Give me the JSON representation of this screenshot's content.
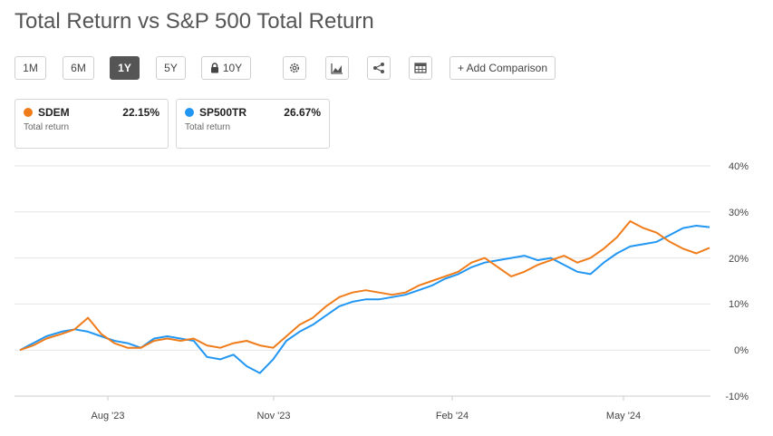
{
  "title": "Total Return vs S&P 500 Total Return",
  "ranges": [
    "1M",
    "6M",
    "1Y",
    "5Y",
    "10Y"
  ],
  "active_range": "1Y",
  "toolbar": {
    "add_comparison": "+ Add Comparison"
  },
  "icons": [
    "gear-icon",
    "mountain-chart-icon",
    "share-icon",
    "table-icon",
    "lock-icon"
  ],
  "legend": [
    {
      "symbol": "SDEM",
      "value": "22.15%",
      "sub": "Total return",
      "color": "#f07c19"
    },
    {
      "symbol": "SP500TR",
      "value": "26.67%",
      "sub": "Total return",
      "color": "#2196f3"
    }
  ],
  "chart_data": {
    "type": "line",
    "y_ticks": [
      "40%",
      "30%",
      "20%",
      "10%",
      "0%",
      "-10%"
    ],
    "x_ticks": [
      "Aug '23",
      "Nov '23",
      "Feb '24",
      "May '24"
    ],
    "ylim": [
      -10,
      40
    ],
    "grid": true,
    "series": [
      {
        "name": "SDEM",
        "color": "#f07c19",
        "x": [
          "2023-06-14",
          "2023-06-21",
          "2023-06-28",
          "2023-07-06",
          "2023-07-13",
          "2023-07-20",
          "2023-07-27",
          "2023-08-03",
          "2023-08-10",
          "2023-08-17",
          "2023-08-24",
          "2023-08-31",
          "2023-09-07",
          "2023-09-14",
          "2023-09-21",
          "2023-09-28",
          "2023-10-05",
          "2023-10-12",
          "2023-10-19",
          "2023-10-26",
          "2023-11-02",
          "2023-11-09",
          "2023-11-16",
          "2023-11-23",
          "2023-11-30",
          "2023-12-07",
          "2023-12-14",
          "2023-12-21",
          "2023-12-28",
          "2024-01-04",
          "2024-01-11",
          "2024-01-18",
          "2024-01-25",
          "2024-02-01",
          "2024-02-08",
          "2024-02-15",
          "2024-02-22",
          "2024-02-29",
          "2024-03-07",
          "2024-03-14",
          "2024-03-21",
          "2024-03-28",
          "2024-04-04",
          "2024-04-11",
          "2024-04-18",
          "2024-04-25",
          "2024-05-02",
          "2024-05-09",
          "2024-05-16",
          "2024-05-23",
          "2024-05-30",
          "2024-06-06",
          "2024-06-13"
        ],
        "values": [
          0,
          1.0,
          2.5,
          3.5,
          4.5,
          7.0,
          3.5,
          1.5,
          0.5,
          0.5,
          2.0,
          2.5,
          2.0,
          2.5,
          1.0,
          0.5,
          1.5,
          2.0,
          1.0,
          0.5,
          3.0,
          5.5,
          7.0,
          9.5,
          11.5,
          12.5,
          13.0,
          12.5,
          12.0,
          12.5,
          14.0,
          15.0,
          16.0,
          17.0,
          19.0,
          20.0,
          18.0,
          16.0,
          17.0,
          18.5,
          19.5,
          20.5,
          19.0,
          20.0,
          22.0,
          24.5,
          28.0,
          26.5,
          25.5,
          23.5,
          22.0,
          21.0,
          22.2
        ]
      },
      {
        "name": "SP500TR",
        "color": "#2196f3",
        "x": [
          "2023-06-14",
          "2023-06-21",
          "2023-06-28",
          "2023-07-06",
          "2023-07-13",
          "2023-07-20",
          "2023-07-27",
          "2023-08-03",
          "2023-08-10",
          "2023-08-17",
          "2023-08-24",
          "2023-08-31",
          "2023-09-07",
          "2023-09-14",
          "2023-09-21",
          "2023-09-28",
          "2023-10-05",
          "2023-10-12",
          "2023-10-19",
          "2023-10-26",
          "2023-11-02",
          "2023-11-09",
          "2023-11-16",
          "2023-11-23",
          "2023-11-30",
          "2023-12-07",
          "2023-12-14",
          "2023-12-21",
          "2023-12-28",
          "2024-01-04",
          "2024-01-11",
          "2024-01-18",
          "2024-01-25",
          "2024-02-01",
          "2024-02-08",
          "2024-02-15",
          "2024-02-22",
          "2024-02-29",
          "2024-03-07",
          "2024-03-14",
          "2024-03-21",
          "2024-03-28",
          "2024-04-04",
          "2024-04-11",
          "2024-04-18",
          "2024-04-25",
          "2024-05-02",
          "2024-05-09",
          "2024-05-16",
          "2024-05-23",
          "2024-05-30",
          "2024-06-06",
          "2024-06-13"
        ],
        "values": [
          0,
          1.5,
          3.0,
          4.0,
          4.5,
          4.0,
          3.0,
          2.0,
          1.5,
          0.5,
          2.5,
          3.0,
          2.5,
          2.0,
          -1.5,
          -2.0,
          -1.0,
          -3.5,
          -5.0,
          -2.0,
          2.0,
          4.0,
          5.5,
          7.5,
          9.5,
          10.5,
          11.0,
          11.0,
          11.5,
          12.0,
          13.0,
          14.0,
          15.5,
          16.5,
          18.0,
          19.0,
          19.5,
          20.0,
          20.5,
          19.5,
          20.0,
          18.5,
          17.0,
          16.5,
          19.0,
          21.0,
          22.5,
          23.0,
          23.5,
          25.0,
          26.5,
          27.0,
          26.7
        ]
      }
    ]
  }
}
